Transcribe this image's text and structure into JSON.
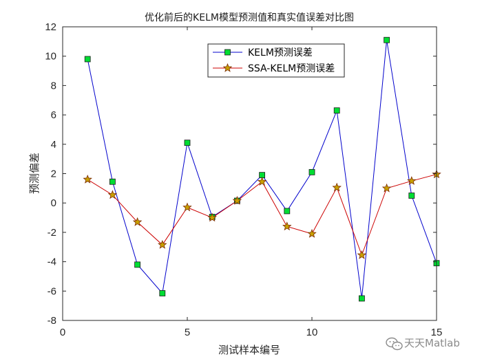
{
  "chart_data": {
    "type": "line",
    "title": "优化前后的KELM模型预测值和真实值误差对比图",
    "xlabel": "测试样本编号",
    "ylabel": "预测偏差",
    "xlim": [
      0,
      15
    ],
    "ylim": [
      -8,
      12
    ],
    "xticks": [
      0,
      5,
      10,
      15
    ],
    "yticks": [
      -8,
      -6,
      -4,
      -2,
      0,
      2,
      4,
      6,
      8,
      10,
      12
    ],
    "grid": false,
    "legend_position": "top-right",
    "x": [
      1,
      2,
      3,
      4,
      5,
      6,
      7,
      8,
      9,
      10,
      11,
      12,
      13,
      14,
      15
    ],
    "series": [
      {
        "name": "KELM预测误差",
        "line_color": "#0000cc",
        "marker": "square",
        "marker_fill": "#00dd33",
        "marker_edge": "#1a1a1a",
        "values": [
          9.8,
          1.45,
          -4.2,
          -6.15,
          4.1,
          -0.95,
          0.15,
          1.9,
          -0.55,
          2.1,
          6.3,
          -6.5,
          11.1,
          0.5,
          -4.1
        ]
      },
      {
        "name": "SSA-KELM预测误差",
        "line_color": "#cc0000",
        "marker": "star",
        "marker_fill": "#c8a000",
        "marker_edge": "#7a2a00",
        "values": [
          1.6,
          0.55,
          -1.3,
          -2.85,
          -0.3,
          -1.0,
          0.15,
          1.45,
          -1.6,
          -2.1,
          1.05,
          -3.55,
          1.0,
          1.5,
          1.95
        ]
      }
    ]
  },
  "watermark": {
    "text": "天天Matlab"
  }
}
